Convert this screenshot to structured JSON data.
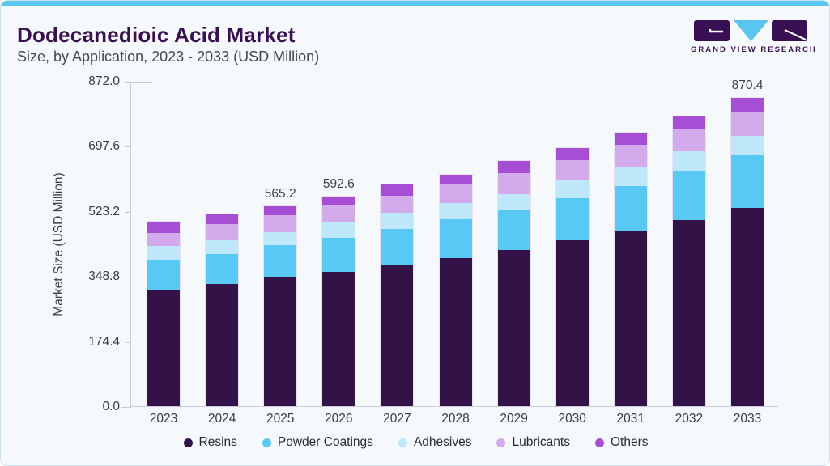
{
  "header": {
    "title": "Dodecanedioic Acid Market",
    "subtitle": "Size, by Application, 2023 - 2033 (USD Million)"
  },
  "logo": {
    "text": "GRAND VIEW RESEARCH",
    "mark_dark_color": "#3a1054",
    "mark_triangle_color": "#58c6f1"
  },
  "theme": {
    "accent": "#58c6f1",
    "card_bg": "#f5f9fc",
    "card_border": "#cfe2ec",
    "title_color": "#3a1054",
    "axis_color": "#c9cdd5"
  },
  "chart_data": {
    "type": "bar",
    "stacked": true,
    "title": "Dodecanedioic Acid Market Size, by Application, 2023 - 2033 (USD Million)",
    "ylabel": "Market Size (USD Million)",
    "xlabel": "",
    "grid": false,
    "legend_position": "bottom",
    "ylim": [
      0,
      872.0
    ],
    "yticks": [
      0.0,
      174.4,
      348.8,
      523.2,
      697.6,
      872.0
    ],
    "categories": [
      "2023",
      "2024",
      "2025",
      "2026",
      "2027",
      "2028",
      "2029",
      "2030",
      "2031",
      "2032",
      "2033"
    ],
    "series": [
      {
        "name": "Resins",
        "color": "#331247",
        "values": [
          330.0,
          344.0,
          363.3,
          379.3,
          398.0,
          419.0,
          442.0,
          468.0,
          496.0,
          526.0,
          559.2
        ]
      },
      {
        "name": "Powder Coatings",
        "color": "#58c8f4",
        "values": [
          84.0,
          86.0,
          91.9,
          96.3,
          103.0,
          109.0,
          114.0,
          119.0,
          125.0,
          138.0,
          148.1
        ]
      },
      {
        "name": "Adhesives",
        "color": "#bfe7fa",
        "values": [
          38.0,
          39.0,
          37.1,
          44.0,
          46.0,
          45.0,
          42.0,
          52.0,
          53.0,
          55.0,
          55.4
        ]
      },
      {
        "name": "Lubricants",
        "color": "#d3aaeb",
        "values": [
          38.0,
          44.0,
          47.8,
          47.2,
          46.0,
          55.0,
          61.0,
          55.0,
          63.0,
          62.0,
          69.9
        ]
      },
      {
        "name": "Others",
        "color": "#a64ed4",
        "values": [
          30.0,
          29.0,
          25.1,
          25.8,
          33.0,
          26.0,
          33.0,
          34.0,
          34.0,
          36.0,
          37.8
        ]
      }
    ],
    "bar_labels": {
      "2025": "565.2",
      "2026": "592.6",
      "2033": "870.4"
    }
  }
}
